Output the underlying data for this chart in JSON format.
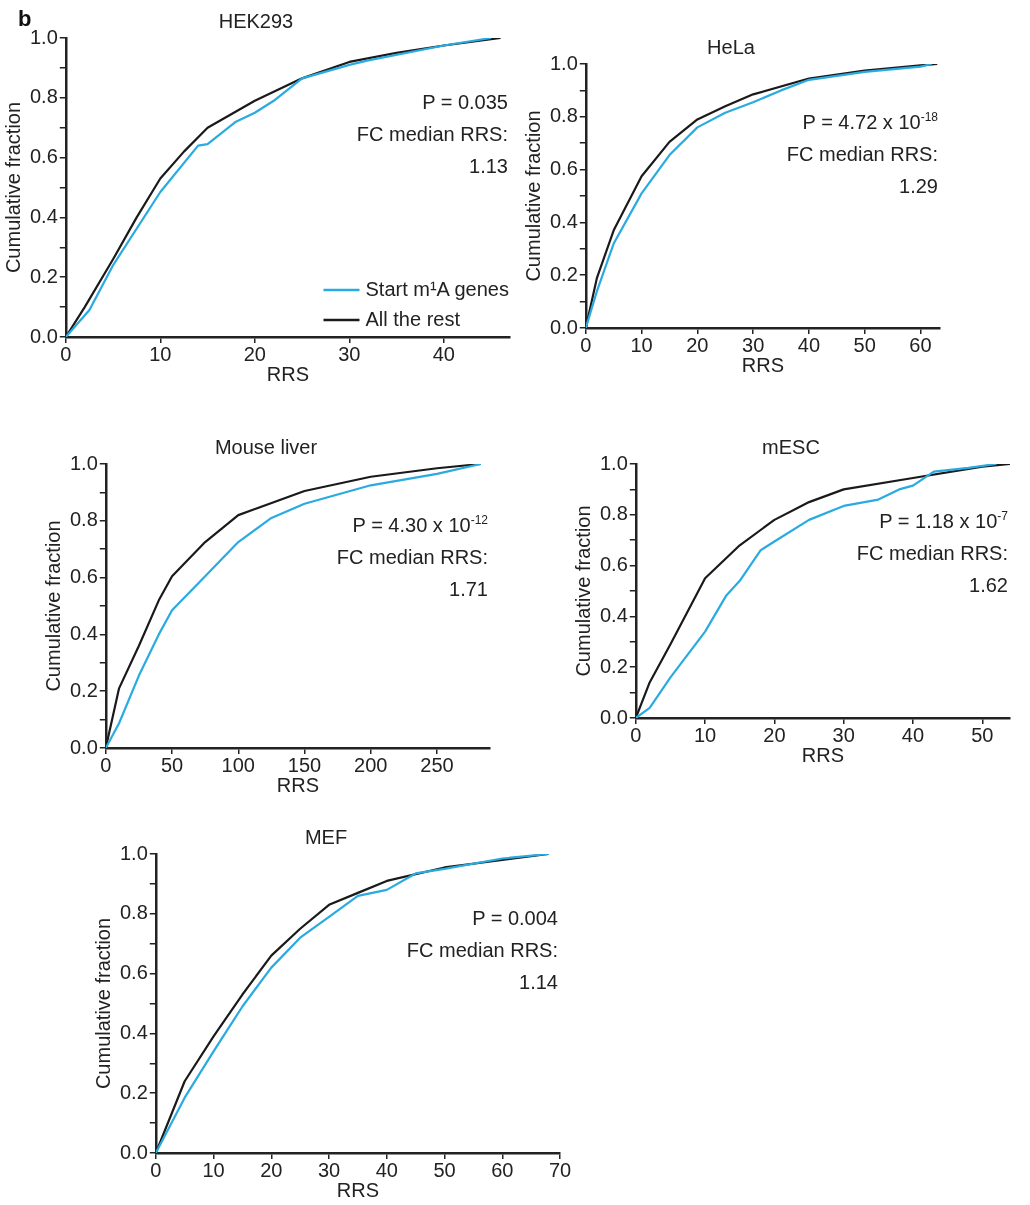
{
  "chart_data": [
    {
      "type": "line",
      "title": "HEK293",
      "xlabel": "RRS",
      "ylabel": "Cumulative fraction",
      "xlim": [
        0,
        47
      ],
      "xticks": [
        0,
        10,
        20,
        30,
        40
      ],
      "ylim": [
        0,
        1
      ],
      "yticks": [
        {
          "value": 0,
          "label": "0.0"
        },
        {
          "value": 0.1,
          "label": null
        },
        {
          "value": 0.2,
          "label": "0.2"
        },
        {
          "value": 0.3,
          "label": null
        },
        {
          "value": 0.4,
          "label": "0.4"
        },
        {
          "value": 0.5,
          "label": null
        },
        {
          "value": 0.6,
          "label": "0.6"
        },
        {
          "value": 0.7,
          "label": null
        },
        {
          "value": 0.8,
          "label": "0.8"
        },
        {
          "value": 0.9,
          "label": null
        },
        {
          "value": 1,
          "label": "1.0"
        }
      ],
      "grid": false,
      "legend": "bottom right",
      "marker": "none",
      "line_style": "solid",
      "annotations": [
        "b",
        "P = 0.035",
        "FC median RRS:",
        "1.13"
      ],
      "series": [
        {
          "name": "Start m¹A genes",
          "color": "#29abe2",
          "x": [
            0,
            2.5,
            5,
            10,
            14,
            15,
            18,
            20,
            22,
            25,
            30,
            32,
            40,
            45
          ],
          "values": [
            0,
            0.09,
            0.24,
            0.485,
            0.64,
            0.645,
            0.72,
            0.75,
            0.79,
            0.865,
            0.91,
            0.925,
            0.975,
            1
          ]
        },
        {
          "name": "All the rest",
          "color": "#1a1a1a",
          "x": [
            0,
            2,
            5,
            7.5,
            10,
            12.5,
            15,
            20,
            25,
            30,
            35,
            40,
            46
          ],
          "values": [
            0,
            0.1,
            0.26,
            0.4,
            0.53,
            0.62,
            0.7,
            0.79,
            0.865,
            0.92,
            0.95,
            0.975,
            1
          ]
        }
      ]
    },
    {
      "type": "line",
      "title": "HeLa",
      "xlabel": "RRS",
      "ylabel": "Cumulative fraction",
      "xlim": [
        0,
        63.5
      ],
      "xticks": [
        0,
        10,
        20,
        30,
        40,
        50,
        60
      ],
      "ylim": [
        0,
        1
      ],
      "yticks": [
        {
          "value": 0,
          "label": "0.0"
        },
        {
          "value": 0.1,
          "label": null
        },
        {
          "value": 0.2,
          "label": "0.2"
        },
        {
          "value": 0.3,
          "label": null
        },
        {
          "value": 0.4,
          "label": "0.4"
        },
        {
          "value": 0.5,
          "label": null
        },
        {
          "value": 0.6,
          "label": "0.6"
        },
        {
          "value": 0.7,
          "label": null
        },
        {
          "value": 0.8,
          "label": "0.8"
        },
        {
          "value": 0.9,
          "label": null
        },
        {
          "value": 1,
          "label": "1.0"
        }
      ],
      "grid": false,
      "marker": "none",
      "line_style": "solid",
      "annotations": [
        "P = 4.72 x 10$^{-18}$",
        "FC median RRS:",
        "1.29"
      ],
      "series": [
        {
          "color": "#29abe2",
          "x": [
            0,
            2,
            5,
            10,
            15,
            20,
            25,
            30,
            35,
            40,
            50,
            60,
            62
          ],
          "values": [
            0,
            0.14,
            0.32,
            0.51,
            0.655,
            0.76,
            0.815,
            0.855,
            0.9,
            0.94,
            0.97,
            0.99,
            1
          ]
        },
        {
          "color": "#1a1a1a",
          "x": [
            0,
            2,
            5,
            10,
            15,
            20,
            25,
            30,
            40,
            50,
            60,
            63
          ],
          "values": [
            0,
            0.19,
            0.37,
            0.575,
            0.705,
            0.79,
            0.84,
            0.885,
            0.945,
            0.975,
            0.995,
            1
          ]
        }
      ]
    },
    {
      "type": "line",
      "title": "Mouse liver",
      "xlabel": "RRS",
      "ylabel": "Cumulative fraction",
      "xlim": [
        0,
        290
      ],
      "xticks": [
        0,
        50,
        100,
        150,
        200,
        250
      ],
      "ylim": [
        0,
        1
      ],
      "yticks": [
        {
          "value": 0,
          "label": "0.0"
        },
        {
          "value": 0.1,
          "label": null
        },
        {
          "value": 0.2,
          "label": "0.2"
        },
        {
          "value": 0.3,
          "label": null
        },
        {
          "value": 0.4,
          "label": "0.4"
        },
        {
          "value": 0.5,
          "label": null
        },
        {
          "value": 0.6,
          "label": "0.6"
        },
        {
          "value": 0.7,
          "label": null
        },
        {
          "value": 0.8,
          "label": "0.8"
        },
        {
          "value": 0.9,
          "label": null
        },
        {
          "value": 1,
          "label": "1.0"
        }
      ],
      "grid": false,
      "marker": "none",
      "line_style": "solid",
      "annotations": [
        "P = 4.30 x 10$^{-12}$",
        "FC median RRS:",
        "1.71"
      ],
      "series": [
        {
          "color": "#29abe2",
          "x": [
            0,
            10,
            25,
            40,
            50,
            75,
            100,
            125,
            150,
            200,
            250,
            283
          ],
          "values": [
            0,
            0.087,
            0.255,
            0.4,
            0.485,
            0.605,
            0.725,
            0.81,
            0.86,
            0.925,
            0.965,
            1
          ]
        },
        {
          "color": "#1a1a1a",
          "x": [
            0,
            10,
            25,
            40,
            50,
            75,
            100,
            150,
            200,
            250,
            283
          ],
          "values": [
            0,
            0.21,
            0.36,
            0.52,
            0.605,
            0.725,
            0.82,
            0.905,
            0.955,
            0.985,
            1
          ]
        }
      ]
    },
    {
      "type": "line",
      "title": "mESC",
      "xlabel": "RRS",
      "ylabel": "Cumulative fraction",
      "xlim": [
        0,
        54
      ],
      "xticks": [
        0,
        10,
        20,
        30,
        40,
        50
      ],
      "ylim": [
        0,
        1
      ],
      "yticks": [
        {
          "value": 0,
          "label": "0.0"
        },
        {
          "value": 0.1,
          "label": null
        },
        {
          "value": 0.2,
          "label": "0.2"
        },
        {
          "value": 0.3,
          "label": null
        },
        {
          "value": 0.4,
          "label": "0.4"
        },
        {
          "value": 0.5,
          "label": null
        },
        {
          "value": 0.6,
          "label": "0.6"
        },
        {
          "value": 0.7,
          "label": null
        },
        {
          "value": 0.8,
          "label": "0.8"
        },
        {
          "value": 0.9,
          "label": null
        },
        {
          "value": 1,
          "label": "1.0"
        }
      ],
      "grid": false,
      "marker": "none",
      "line_style": "solid",
      "annotations": [
        "P = 1.18 x 10$^{-7}$",
        "FC median RRS:",
        "1.62"
      ],
      "series": [
        {
          "color": "#29abe2",
          "x": [
            0,
            2,
            5,
            10,
            13,
            15,
            18,
            20,
            25,
            30,
            35,
            38,
            40,
            43,
            48,
            52
          ],
          "values": [
            0,
            0.04,
            0.16,
            0.34,
            0.48,
            0.54,
            0.66,
            0.695,
            0.78,
            0.835,
            0.86,
            0.9,
            0.915,
            0.97,
            0.985,
            1
          ]
        },
        {
          "color": "#1a1a1a",
          "x": [
            0,
            2,
            5,
            10,
            15,
            20,
            25,
            30,
            40,
            50,
            54
          ],
          "values": [
            0,
            0.14,
            0.29,
            0.55,
            0.68,
            0.78,
            0.85,
            0.9,
            0.945,
            0.99,
            1
          ]
        }
      ]
    },
    {
      "type": "line",
      "title": "MEF",
      "xlabel": "RRS",
      "ylabel": "Cumulative fraction",
      "xlim": [
        0,
        70
      ],
      "xticks": [
        0,
        10,
        20,
        30,
        40,
        50,
        60,
        70
      ],
      "ylim": [
        0,
        1
      ],
      "yticks": [
        {
          "value": 0,
          "label": "0.0"
        },
        {
          "value": 0.1,
          "label": null
        },
        {
          "value": 0.2,
          "label": "0.2"
        },
        {
          "value": 0.3,
          "label": null
        },
        {
          "value": 0.4,
          "label": "0.4"
        },
        {
          "value": 0.5,
          "label": null
        },
        {
          "value": 0.6,
          "label": "0.6"
        },
        {
          "value": 0.7,
          "label": null
        },
        {
          "value": 0.8,
          "label": "0.8"
        },
        {
          "value": 0.9,
          "label": null
        },
        {
          "value": 1,
          "label": "1.0"
        }
      ],
      "grid": false,
      "marker": "none",
      "line_style": "solid",
      "annotations": [
        "P = 0.004",
        "FC median RRS:",
        "1.14"
      ],
      "series": [
        {
          "color": "#29abe2",
          "x": [
            0,
            5,
            10,
            15,
            20,
            25,
            30,
            35,
            40,
            45,
            50,
            60,
            68
          ],
          "values": [
            0,
            0.185,
            0.34,
            0.49,
            0.62,
            0.72,
            0.79,
            0.86,
            0.88,
            0.935,
            0.95,
            0.985,
            1
          ]
        },
        {
          "color": "#1a1a1a",
          "x": [
            0,
            5,
            10,
            15,
            20,
            25,
            30,
            35,
            40,
            50,
            60,
            68
          ],
          "values": [
            0,
            0.24,
            0.39,
            0.53,
            0.66,
            0.75,
            0.83,
            0.87,
            0.91,
            0.955,
            0.98,
            1
          ]
        }
      ]
    }
  ]
}
